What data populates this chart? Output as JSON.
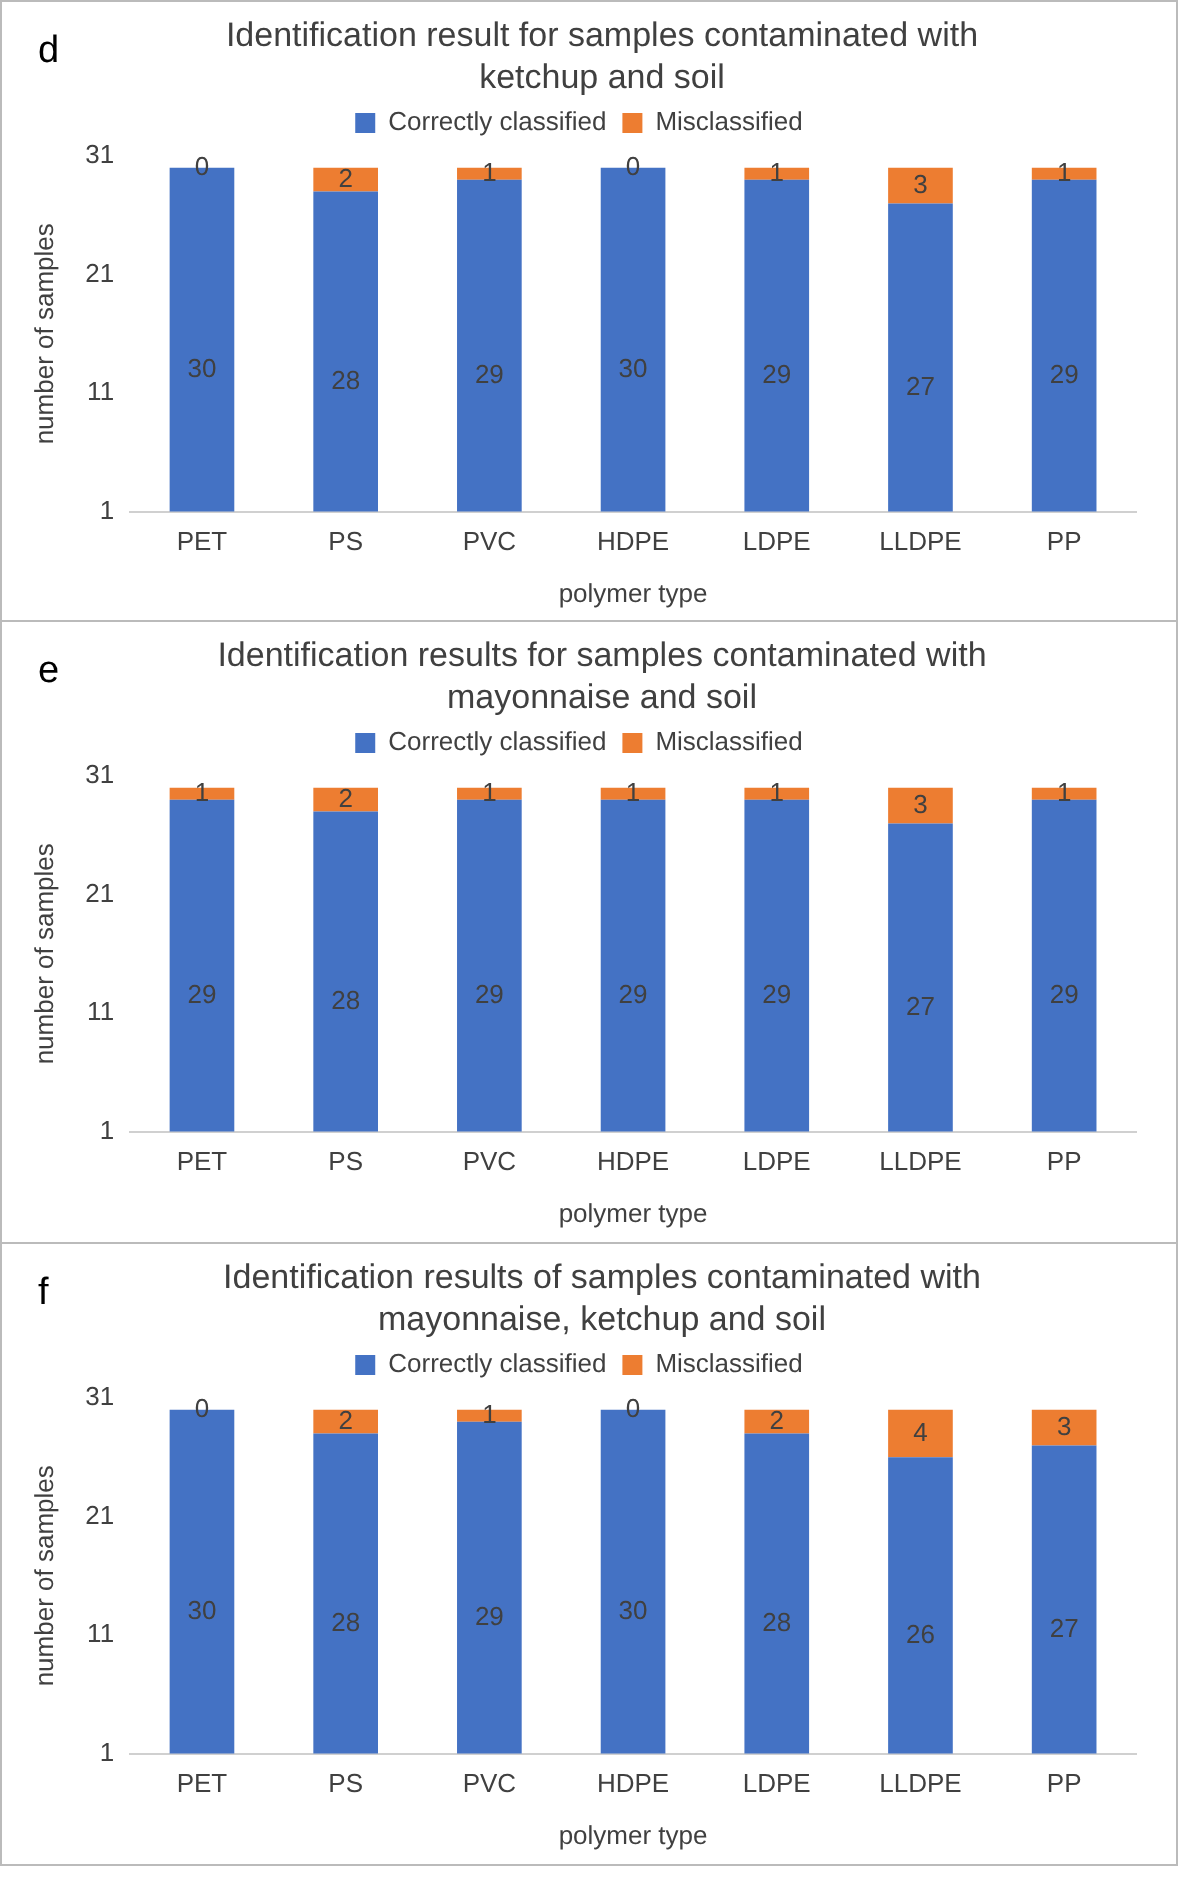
{
  "chart_data": [
    {
      "type": "bar",
      "title": "Identification result for samples contaminated with ketchup and soil",
      "xlabel": "polymer type",
      "ylabel": "number of samples",
      "annotations": [
        "d"
      ],
      "categories": [
        "PET",
        "PS",
        "PVC",
        "HDPE",
        "LDPE",
        "LLDPE",
        "PP"
      ],
      "stacked": true,
      "ylim": [
        1,
        31
      ],
      "yticks": [
        1,
        11,
        21,
        31
      ],
      "grid": false,
      "legend": "top",
      "series": [
        {
          "name": "Correctly classified",
          "color": "#4472c4",
          "values": [
            30,
            28,
            29,
            30,
            29,
            27,
            29
          ],
          "value_labels": [
            "30",
            "28",
            "29",
            "30",
            "29",
            "27",
            "29"
          ]
        },
        {
          "name": "Misclassified",
          "color": "#ed7d31",
          "values": [
            null,
            2,
            1,
            null,
            1,
            3,
            1
          ],
          "value_labels": [
            "0",
            "2",
            "1",
            "0",
            "1",
            "3",
            "1"
          ]
        }
      ]
    },
    {
      "type": "bar",
      "title": "Identification results for samples contaminated with mayonnaise and soil",
      "xlabel": "polymer type",
      "ylabel": "number of samples",
      "annotations": [
        "e"
      ],
      "categories": [
        "PET",
        "PS",
        "PVC",
        "HDPE",
        "LDPE",
        "LLDPE",
        "PP"
      ],
      "stacked": true,
      "ylim": [
        1,
        31
      ],
      "yticks": [
        1,
        11,
        21,
        31
      ],
      "grid": false,
      "legend": "top",
      "data_labels": true,
      "series": [
        {
          "name": "Correctly classified",
          "color": "#4472c4",
          "values": [
            29,
            28,
            29,
            29,
            29,
            27,
            29
          ]
        },
        {
          "name": "Misclassified",
          "color": "#ed7d31",
          "values": [
            1,
            2,
            1,
            1,
            1,
            3,
            1
          ]
        }
      ]
    },
    {
      "type": "bar",
      "title": "Identification results of samples contaminated with mayonnaise, ketchup and soil",
      "xlabel": "polymer type",
      "ylabel": "number of samples",
      "annotations": [
        "f"
      ],
      "categories": [
        "PET",
        "PS",
        "PVC",
        "HDPE",
        "LDPE",
        "LLDPE",
        "PP"
      ],
      "stacked": true,
      "ylim": [
        1,
        31
      ],
      "yticks": [
        1,
        11,
        21,
        31
      ],
      "grid": false,
      "legend": "top",
      "series": [
        {
          "name": "Correctly classified",
          "color": "#4472c4",
          "values": [
            30,
            28,
            29,
            30,
            28,
            26,
            27
          ],
          "value_labels": [
            "30",
            "28",
            "29",
            "30",
            "28",
            "26",
            "27"
          ]
        },
        {
          "name": "Misclassified",
          "color": "#ed7d31",
          "values": [
            null,
            2,
            1,
            null,
            2,
            4,
            3
          ],
          "value_labels": [
            "0",
            "2",
            "1",
            "0",
            "2",
            "4",
            "3"
          ]
        }
      ]
    }
  ]
}
